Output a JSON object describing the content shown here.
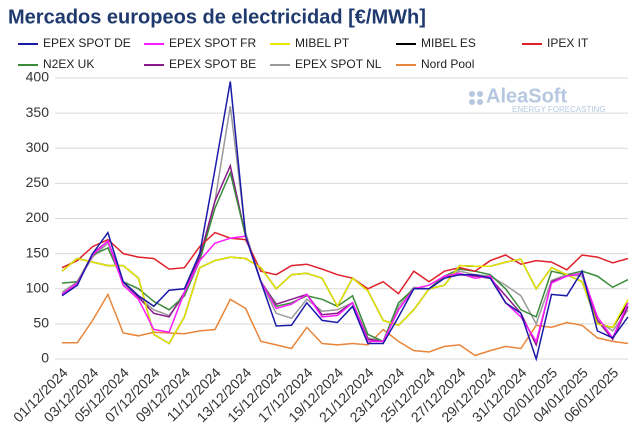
{
  "chart_data": {
    "type": "line",
    "title": "Mercados europeos de electricidad [€/MWh]",
    "watermark": "AleaSoft",
    "watermark_tagline": "ENERGY FORECASTING",
    "categories": [
      "01/12/2024",
      null,
      "03/12/2024",
      null,
      "05/12/2024",
      null,
      "07/12/2024",
      null,
      "09/12/2024",
      null,
      "11/12/2024",
      null,
      "13/12/2024",
      null,
      "15/12/2024",
      null,
      "17/12/2024",
      null,
      "19/12/2024",
      null,
      "21/12/2024",
      null,
      "23/12/2024",
      null,
      "25/12/2024",
      null,
      "27/12/2024",
      null,
      "29/12/2024",
      null,
      "31/12/2024",
      null,
      "02/01/2025",
      null,
      "04/01/2025",
      null,
      "06/01/2025",
      null
    ],
    "ylim": [
      0,
      400
    ],
    "yticks": [
      0,
      50,
      100,
      150,
      200,
      250,
      300,
      350,
      400
    ],
    "grid": true,
    "series": [
      {
        "name": "EPEX SPOT DE",
        "color": "#1a1aa8",
        "values": [
          90,
          105,
          150,
          180,
          110,
          90,
          75,
          98,
          100,
          150,
          270,
          395,
          175,
          110,
          47,
          48,
          80,
          55,
          52,
          75,
          22,
          22,
          60,
          100,
          100,
          115,
          120,
          120,
          115,
          80,
          65,
          0,
          92,
          90,
          125,
          40,
          30,
          60
        ]
      },
      {
        "name": "EPEX SPOT FR",
        "color": "#ff1aff",
        "values": [
          92,
          108,
          148,
          168,
          105,
          85,
          42,
          38,
          95,
          140,
          165,
          172,
          175,
          110,
          72,
          78,
          92,
          60,
          62,
          80,
          25,
          25,
          70,
          100,
          105,
          118,
          122,
          115,
          118,
          80,
          60,
          25,
          108,
          118,
          122,
          60,
          30,
          80
        ]
      },
      {
        "name": "MIBEL PT",
        "color": "#e8e800",
        "values": [
          125,
          143,
          138,
          133,
          133,
          115,
          35,
          22,
          60,
          130,
          140,
          145,
          143,
          130,
          100,
          120,
          122,
          115,
          75,
          115,
          97,
          55,
          48,
          70,
          100,
          105,
          133,
          132,
          132,
          138,
          142,
          100,
          130,
          120,
          110,
          50,
          45,
          85
        ]
      },
      {
        "name": "MIBEL ES",
        "color": "#000000",
        "values": [
          125,
          143,
          138,
          133,
          133,
          115,
          35,
          22,
          60,
          130,
          140,
          145,
          143,
          130,
          100,
          120,
          122,
          115,
          75,
          115,
          97,
          55,
          48,
          70,
          100,
          105,
          133,
          132,
          132,
          138,
          142,
          100,
          130,
          120,
          110,
          50,
          45,
          80
        ]
      },
      {
        "name": "IPEX IT",
        "color": "#e0202a",
        "values": [
          130,
          140,
          160,
          170,
          150,
          145,
          143,
          128,
          130,
          160,
          180,
          172,
          170,
          125,
          120,
          133,
          135,
          128,
          120,
          115,
          100,
          110,
          93,
          125,
          110,
          125,
          130,
          125,
          140,
          148,
          135,
          140,
          138,
          127,
          148,
          145,
          137,
          143
        ]
      },
      {
        "name": "N2EX UK",
        "color": "#3a8a3a",
        "values": [
          108,
          110,
          148,
          158,
          110,
          100,
          82,
          70,
          90,
          140,
          215,
          265,
          175,
          110,
          75,
          80,
          90,
          85,
          75,
          90,
          35,
          25,
          80,
          100,
          100,
          118,
          128,
          125,
          120,
          100,
          70,
          60,
          125,
          120,
          125,
          118,
          102,
          113
        ]
      },
      {
        "name": "EPEX SPOT BE",
        "color": "#8b1a8b",
        "values": [
          92,
          108,
          150,
          168,
          110,
          88,
          65,
          60,
          95,
          145,
          225,
          275,
          175,
          110,
          78,
          85,
          92,
          63,
          65,
          80,
          28,
          25,
          70,
          100,
          100,
          118,
          120,
          118,
          115,
          90,
          65,
          20,
          110,
          118,
          122,
          55,
          28,
          75
        ]
      },
      {
        "name": "EPEX SPOT NL",
        "color": "#999999",
        "values": [
          95,
          110,
          145,
          165,
          108,
          88,
          70,
          62,
          90,
          140,
          225,
          360,
          180,
          110,
          65,
          58,
          85,
          68,
          70,
          80,
          30,
          25,
          75,
          102,
          100,
          115,
          125,
          120,
          118,
          105,
          90,
          50,
          112,
          120,
          118,
          55,
          40,
          70
        ]
      },
      {
        "name": "Nord Pool",
        "color": "#e8853a",
        "values": [
          23,
          23,
          55,
          92,
          37,
          33,
          38,
          37,
          36,
          40,
          42,
          85,
          72,
          25,
          20,
          15,
          45,
          22,
          20,
          22,
          20,
          42,
          25,
          12,
          10,
          18,
          20,
          5,
          12,
          18,
          15,
          48,
          45,
          52,
          48,
          30,
          25,
          22
        ]
      }
    ]
  }
}
